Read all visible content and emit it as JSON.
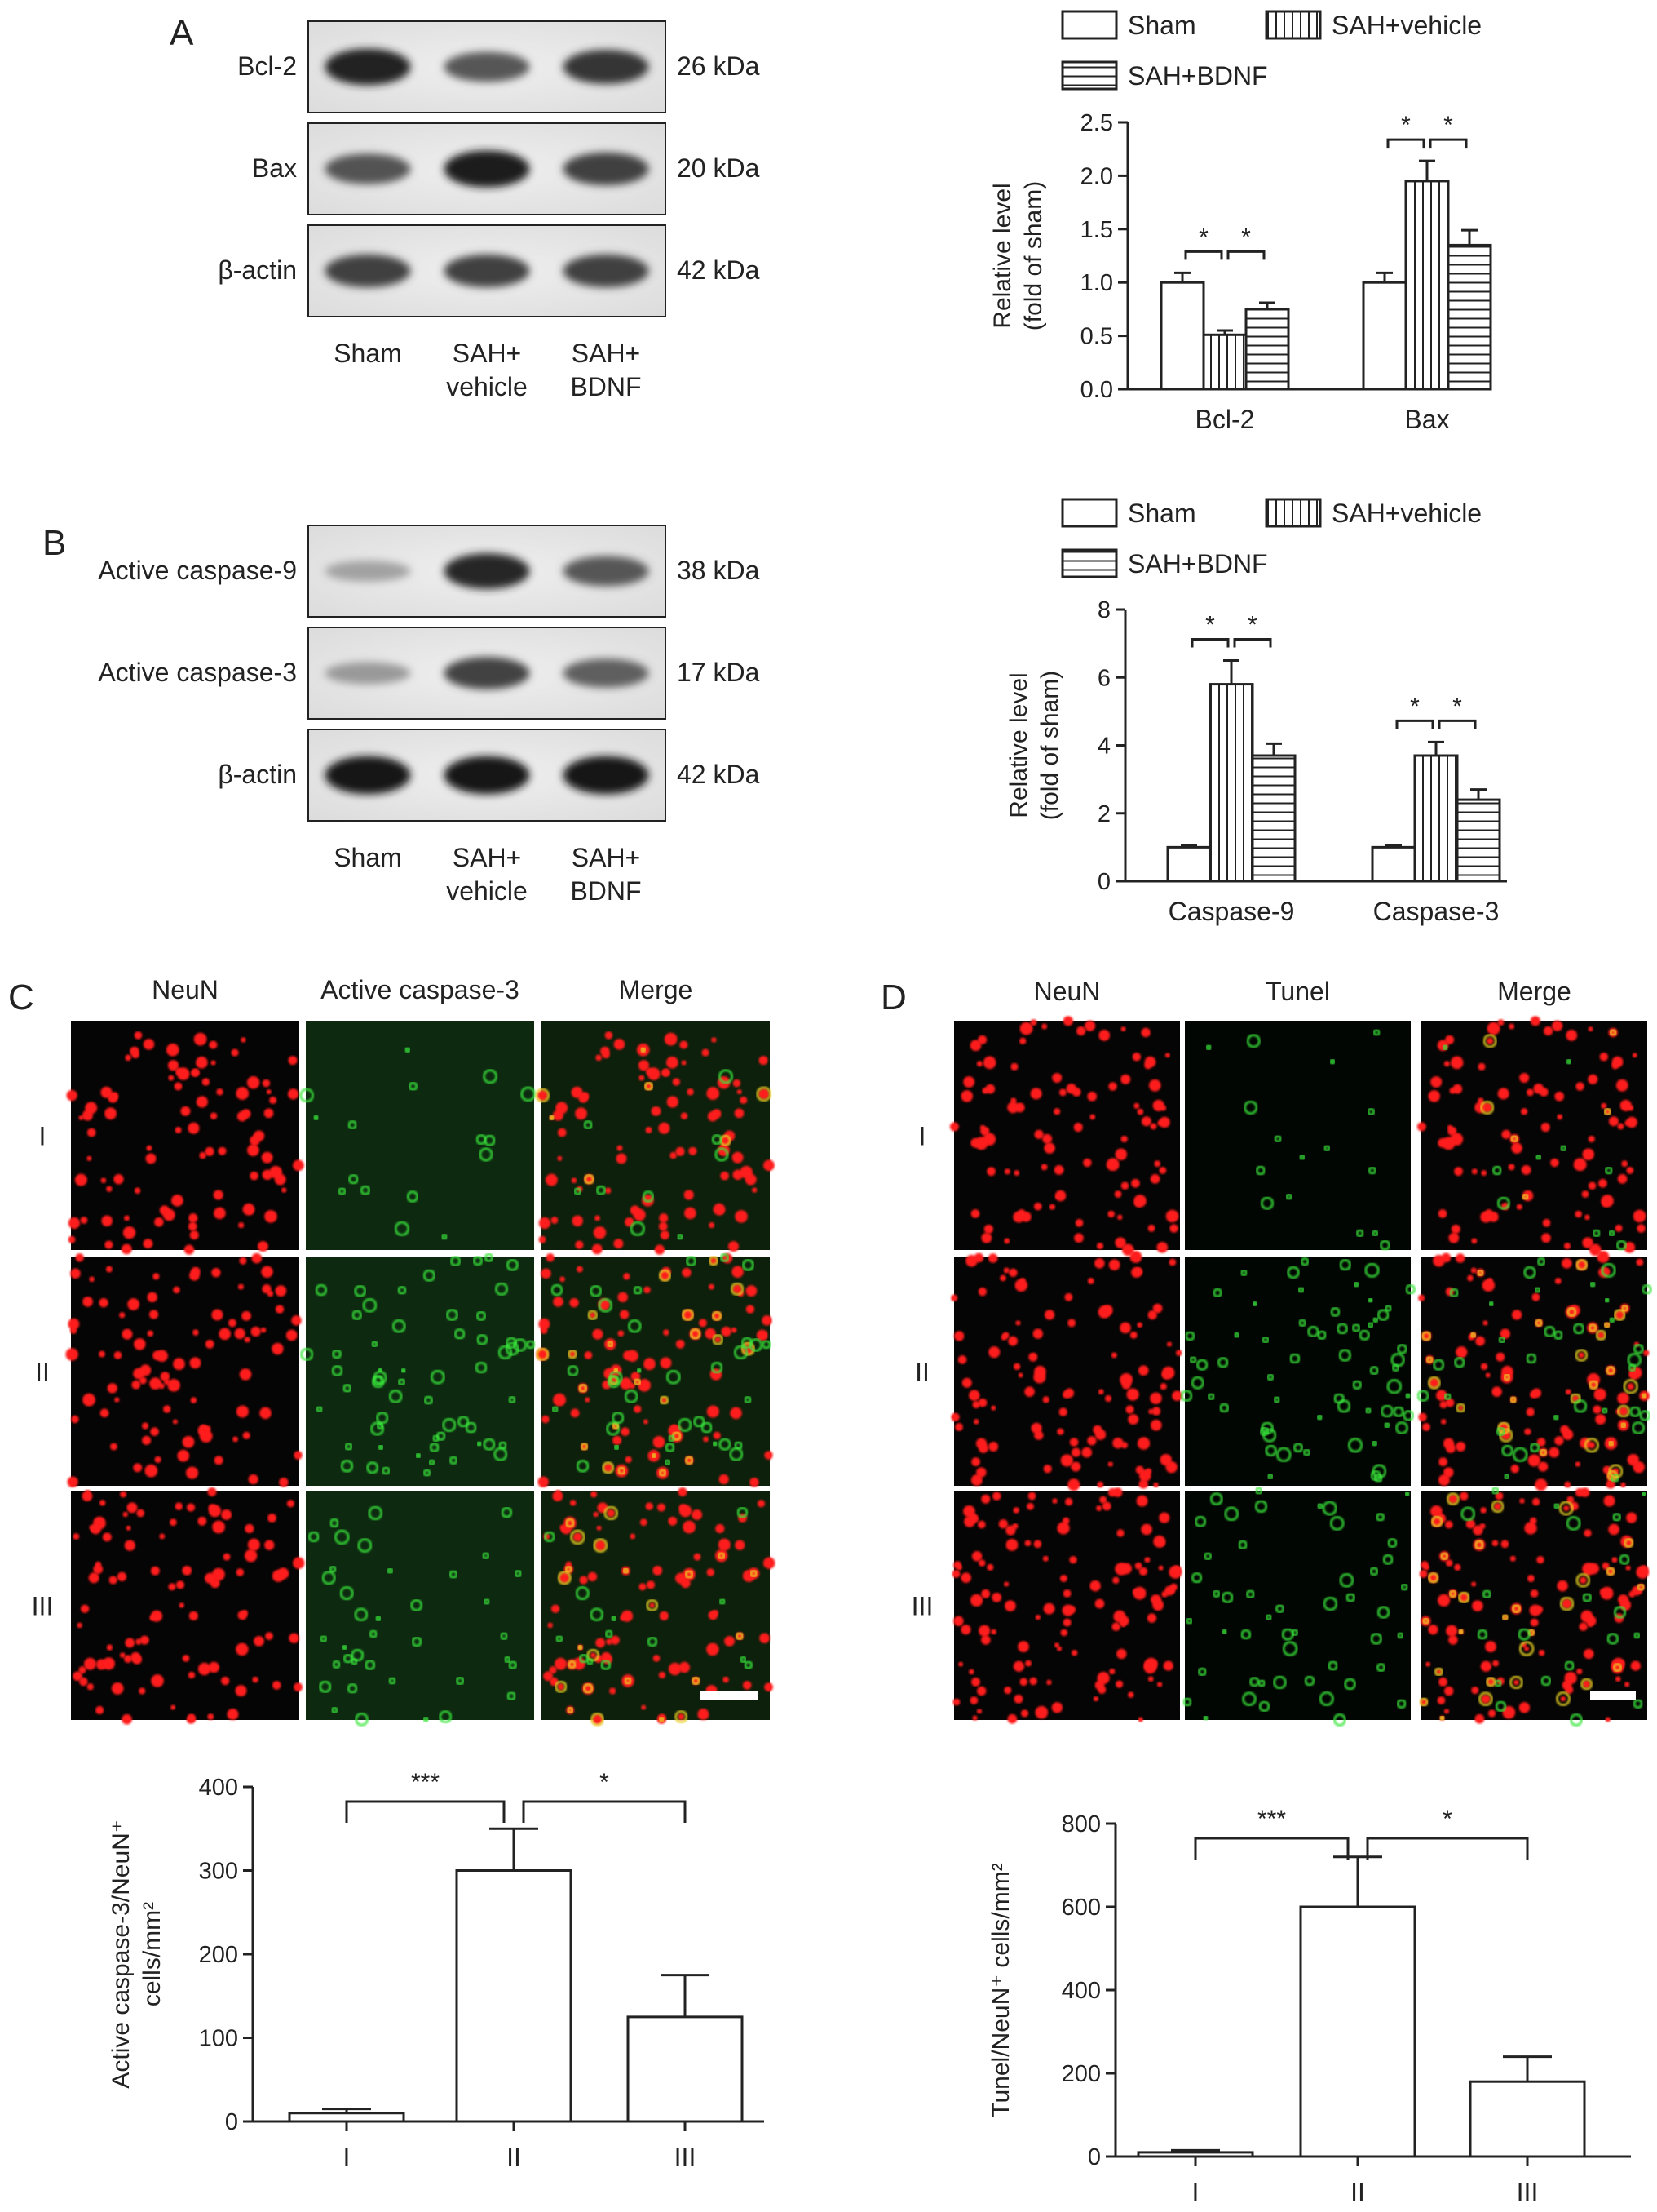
{
  "panel_letters": [
    "A",
    "B",
    "C",
    "D"
  ],
  "legend": {
    "sham": "Sham",
    "sah_vehicle": "SAH+vehicle",
    "sah_bdnf": "SAH+BDNF"
  },
  "blots": {
    "A": {
      "rows": [
        {
          "protein": "Bcl-2",
          "size": "26 kDa",
          "intensity": [
            0.88,
            0.6,
            0.78
          ]
        },
        {
          "protein": "Bax",
          "size": "20 kDa",
          "intensity": [
            0.62,
            0.9,
            0.72
          ]
        },
        {
          "protein": "β-actin",
          "size": "42 kDa",
          "intensity": [
            0.72,
            0.72,
            0.72
          ]
        }
      ],
      "lanes": [
        [
          "Sham"
        ],
        [
          "SAH+",
          "vehicle"
        ],
        [
          "SAH+",
          "BDNF"
        ]
      ]
    },
    "B": {
      "rows": [
        {
          "protein": "Active caspase-9",
          "size": "38 kDa",
          "intensity": [
            0.2,
            0.85,
            0.6
          ]
        },
        {
          "protein": "Active caspase-3",
          "size": "17 kDa",
          "intensity": [
            0.25,
            0.7,
            0.55
          ]
        },
        {
          "protein": "β-actin",
          "size": "42 kDa",
          "intensity": [
            0.95,
            0.95,
            0.95
          ]
        }
      ],
      "lanes": [
        [
          "Sham"
        ],
        [
          "SAH+",
          "vehicle"
        ],
        [
          "SAH+",
          "BDNF"
        ]
      ]
    }
  },
  "micro": {
    "C": {
      "cols": [
        "NeuN",
        "Active caspase-3",
        "Merge"
      ],
      "rows": [
        "I",
        "II",
        "III"
      ],
      "density": {
        "red": [
          0.55,
          0.55,
          0.6
        ],
        "green": [
          0.05,
          0.45,
          0.25
        ]
      }
    },
    "D": {
      "cols": [
        "NeuN",
        "Tunel",
        "Merge"
      ],
      "rows": [
        "I",
        "II",
        "III"
      ],
      "density": {
        "red": [
          0.6,
          0.7,
          0.9
        ],
        "green": [
          0.05,
          0.5,
          0.35
        ]
      }
    }
  },
  "chart_data": [
    {
      "panel": "A",
      "type": "bar",
      "categories": [
        "Bcl-2",
        "Bax"
      ],
      "series": [
        {
          "name": "Sham",
          "values": [
            1.0,
            1.0
          ],
          "errors": [
            0.09,
            0.09
          ]
        },
        {
          "name": "SAH+vehicle",
          "values": [
            0.51,
            1.95
          ],
          "errors": [
            0.04,
            0.19
          ]
        },
        {
          "name": "SAH+BDNF",
          "values": [
            0.75,
            1.35
          ],
          "errors": [
            0.06,
            0.14
          ]
        }
      ],
      "ylabel": [
        "Relative level",
        "(fold of sham)"
      ],
      "ylim": [
        0,
        2.5
      ],
      "yticks": [
        "0.0",
        "0.5",
        "1.0",
        "1.5",
        "2.0",
        "2.5"
      ],
      "significance": [
        {
          "category": "Bcl-2",
          "pair": [
            "Sham",
            "SAH+vehicle"
          ],
          "label": "*"
        },
        {
          "category": "Bcl-2",
          "pair": [
            "SAH+vehicle",
            "SAH+BDNF"
          ],
          "label": "*"
        },
        {
          "category": "Bax",
          "pair": [
            "Sham",
            "SAH+vehicle"
          ],
          "label": "*"
        },
        {
          "category": "Bax",
          "pair": [
            "SAH+vehicle",
            "SAH+BDNF"
          ],
          "label": "*"
        }
      ]
    },
    {
      "panel": "B",
      "type": "bar",
      "categories": [
        "Caspase-9",
        "Caspase-3"
      ],
      "series": [
        {
          "name": "Sham",
          "values": [
            1.0,
            1.0
          ],
          "errors": [
            0.06,
            0.06
          ]
        },
        {
          "name": "SAH+vehicle",
          "values": [
            5.8,
            3.7
          ],
          "errors": [
            0.7,
            0.4
          ]
        },
        {
          "name": "SAH+BDNF",
          "values": [
            3.7,
            2.4
          ],
          "errors": [
            0.35,
            0.3
          ]
        }
      ],
      "ylabel": [
        "Relative level",
        "(fold of sham)"
      ],
      "ylim": [
        0,
        8
      ],
      "yticks": [
        "0",
        "2",
        "4",
        "6",
        "8"
      ],
      "significance": [
        {
          "category": "Caspase-9",
          "pair": [
            "Sham",
            "SAH+vehicle"
          ],
          "label": "*"
        },
        {
          "category": "Caspase-9",
          "pair": [
            "SAH+vehicle",
            "SAH+BDNF"
          ],
          "label": "*"
        },
        {
          "category": "Caspase-3",
          "pair": [
            "Sham",
            "SAH+vehicle"
          ],
          "label": "*"
        },
        {
          "category": "Caspase-3",
          "pair": [
            "SAH+vehicle",
            "SAH+BDNF"
          ],
          "label": "*"
        }
      ]
    },
    {
      "panel": "C",
      "type": "bar",
      "categories": [
        "I",
        "II",
        "III"
      ],
      "values": [
        10,
        300,
        125
      ],
      "errors": [
        5,
        50,
        50
      ],
      "ylabel": [
        "Active caspase-3/NeuN⁺",
        "cells/mm²"
      ],
      "ylim": [
        0,
        400
      ],
      "yticks": [
        "0",
        "100",
        "200",
        "300",
        "400"
      ],
      "significance": [
        {
          "pair": [
            "I",
            "II"
          ],
          "label": "***"
        },
        {
          "pair": [
            "II",
            "III"
          ],
          "label": "*"
        }
      ]
    },
    {
      "panel": "D",
      "type": "bar",
      "categories": [
        "I",
        "II",
        "III"
      ],
      "values": [
        10,
        600,
        180
      ],
      "errors": [
        5,
        120,
        60
      ],
      "ylabel": [
        "Tunel/NeuN⁺ cells/mm²"
      ],
      "ylim": [
        0,
        800
      ],
      "yticks": [
        "0",
        "200",
        "400",
        "600",
        "800"
      ],
      "significance": [
        {
          "pair": [
            "I",
            "II"
          ],
          "label": "***"
        },
        {
          "pair": [
            "II",
            "III"
          ],
          "label": "*"
        }
      ]
    }
  ]
}
